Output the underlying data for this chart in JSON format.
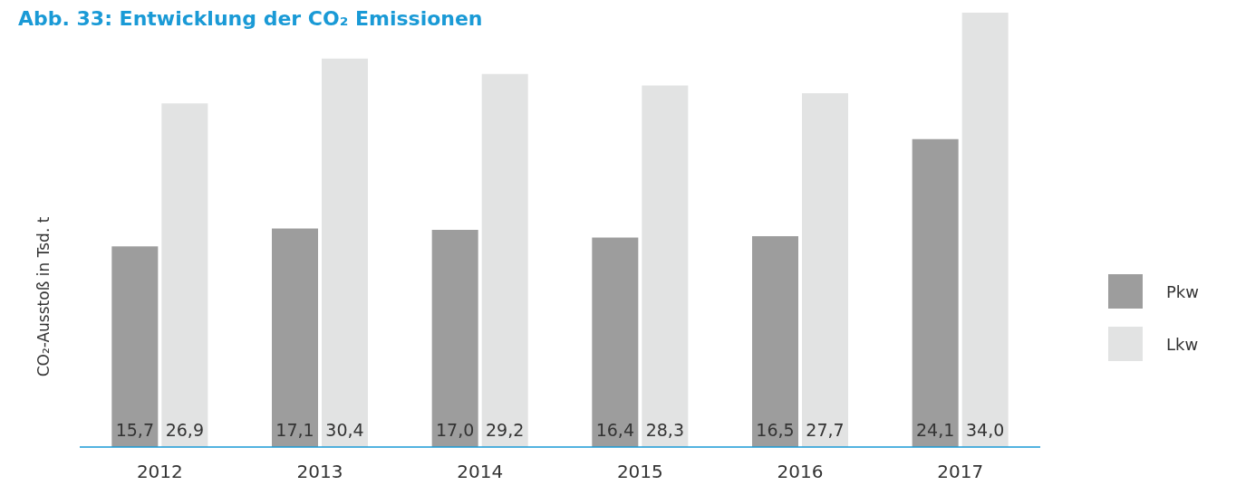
{
  "chart_data": {
    "type": "bar",
    "title": "Abb. 33: Entwicklung der CO₂ Emissionen",
    "ylabel": "CO₂-Ausstoß in Tsd. t",
    "categories": [
      "2012",
      "2013",
      "2014",
      "2015",
      "2016",
      "2017"
    ],
    "series": [
      {
        "name": "Pkw",
        "color": "#9d9d9d",
        "values": [
          15.7,
          17.1,
          17.0,
          16.4,
          16.5,
          24.1
        ],
        "value_labels": [
          "15,7",
          "17,1",
          "17,0",
          "16,4",
          "16,5",
          "24,1"
        ]
      },
      {
        "name": "Lkw",
        "color": "#e2e3e3",
        "values": [
          26.9,
          30.4,
          29.2,
          28.3,
          27.7,
          34.0
        ],
        "value_labels": [
          "26,9",
          "30,4",
          "29,2",
          "28,3",
          "27,7",
          "34,0"
        ]
      }
    ],
    "legend": "right"
  }
}
